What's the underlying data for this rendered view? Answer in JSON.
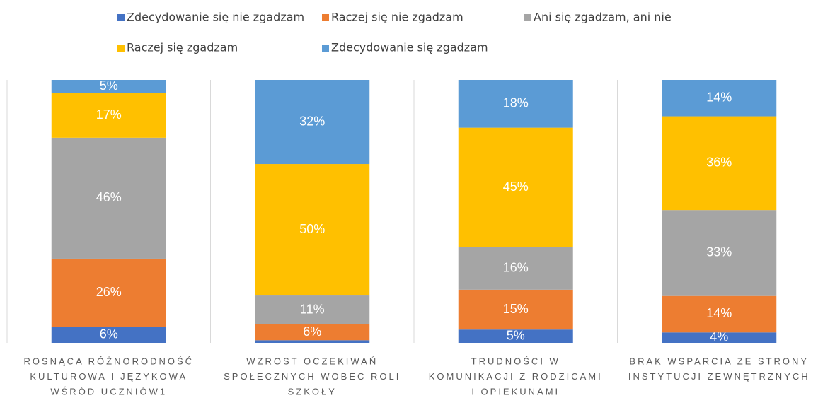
{
  "chart_data": {
    "type": "stacked_bar",
    "categories": [
      [
        "ROSNĄCA RÓŻNORODNOŚĆ",
        "KULTUROWA I JĘZYKOWA",
        "WŚRÓD UCZNIÓW1"
      ],
      [
        "WZROST OCZEKIWAŃ",
        "SPOŁECZNYCH WOBEC ROLI",
        "SZKOŁY"
      ],
      [
        "TRUDNOŚCI W",
        "KOMUNIKACJI Z RODZICAMI",
        "I OPIEKUNAMI"
      ],
      [
        "BRAK WSPARCIA ZE STRONY",
        "INSTYTUCJI ZEWNĘTRZNYCH"
      ]
    ],
    "series": [
      {
        "name": "Zdecydowanie się nie zgadzam",
        "color": "#4472c4",
        "values": [
          6,
          1,
          5,
          4
        ],
        "value_labels": [
          "6%",
          null,
          "5%",
          "4%"
        ]
      },
      {
        "name": "Raczej się nie zgadzam",
        "color": "#ed7d31",
        "values": [
          26,
          6,
          15,
          14
        ],
        "value_labels": [
          "26%",
          "6%",
          "15%",
          "14%"
        ]
      },
      {
        "name": "Ani się zgadzam, ani nie",
        "color": "#a5a5a5",
        "values": [
          46,
          11,
          16,
          33
        ],
        "value_labels": [
          "46%",
          "11%",
          "16%",
          "33%"
        ]
      },
      {
        "name": "Raczej się zgadzam",
        "color": "#ffc000",
        "values": [
          17,
          50,
          45,
          36
        ],
        "value_labels": [
          "17%",
          "50%",
          "45%",
          "36%"
        ]
      },
      {
        "name": "Zdecydowanie się zgadzam",
        "color": "#5b9bd5",
        "values": [
          5,
          32,
          18,
          14
        ],
        "value_labels": [
          "5%",
          "32%",
          "18%",
          "14%"
        ]
      }
    ]
  }
}
